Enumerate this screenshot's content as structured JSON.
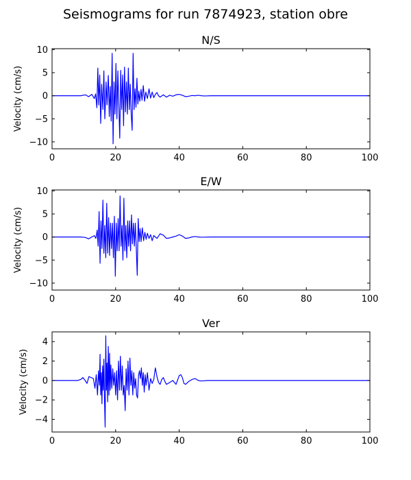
{
  "title": "Seismograms for run 7874923, station obre",
  "chart_data": [
    {
      "type": "line",
      "title": "N/S",
      "xlabel": "",
      "ylabel": "Velocity (cm/s)",
      "xlim": [
        0,
        100
      ],
      "ylim": [
        -11.5,
        10.2
      ],
      "xticks": [
        0,
        20,
        40,
        60,
        80,
        100
      ],
      "yticks": [
        10,
        5,
        0,
        -5,
        -10
      ],
      "color": "#0000ff",
      "points": [
        [
          0,
          0
        ],
        [
          9,
          0
        ],
        [
          10.5,
          0.2
        ],
        [
          11.5,
          -0.2
        ],
        [
          12.5,
          0.3
        ],
        [
          13.3,
          -0.6
        ],
        [
          13.7,
          0.4
        ],
        [
          14.1,
          -2.6
        ],
        [
          14.4,
          6.0
        ],
        [
          14.7,
          -2.0
        ],
        [
          15.0,
          4.5
        ],
        [
          15.3,
          -6.0
        ],
        [
          15.6,
          2.5
        ],
        [
          16.0,
          -3.0
        ],
        [
          16.3,
          5.4
        ],
        [
          16.6,
          -5.0
        ],
        [
          17.0,
          3.0
        ],
        [
          17.3,
          -2.0
        ],
        [
          17.7,
          4.4
        ],
        [
          18.0,
          -4.5
        ],
        [
          18.3,
          2.0
        ],
        [
          18.6,
          -5.5
        ],
        [
          18.9,
          9.2
        ],
        [
          19.2,
          -10.4
        ],
        [
          19.5,
          3.0
        ],
        [
          19.8,
          -4.0
        ],
        [
          20.1,
          7.0
        ],
        [
          20.4,
          -5.0
        ],
        [
          20.7,
          5.4
        ],
        [
          21.0,
          -2.0
        ],
        [
          21.3,
          -9.2
        ],
        [
          21.6,
          5.5
        ],
        [
          21.9,
          -3.0
        ],
        [
          22.2,
          4.5
        ],
        [
          22.5,
          -6.5
        ],
        [
          22.8,
          6.2
        ],
        [
          23.1,
          -3.5
        ],
        [
          23.4,
          3.0
        ],
        [
          23.7,
          -4.0
        ],
        [
          24.0,
          6.0
        ],
        [
          24.3,
          -3.0
        ],
        [
          24.6,
          2.5
        ],
        [
          24.9,
          -4.0
        ],
        [
          25.2,
          -7.5
        ],
        [
          25.5,
          9.2
        ],
        [
          25.8,
          -3.0
        ],
        [
          26.1,
          1.5
        ],
        [
          26.4,
          -2.5
        ],
        [
          26.7,
          3.8
        ],
        [
          27.0,
          -1.8
        ],
        [
          27.3,
          1.0
        ],
        [
          27.6,
          -1.2
        ],
        [
          28.0,
          1.4
        ],
        [
          28.3,
          -1.0
        ],
        [
          28.7,
          2.2
        ],
        [
          29.1,
          -1.2
        ],
        [
          29.5,
          0.8
        ],
        [
          30.0,
          -0.6
        ],
        [
          30.5,
          1.5
        ],
        [
          31.0,
          -0.5
        ],
        [
          31.5,
          0.8
        ],
        [
          32.0,
          -0.4
        ],
        [
          32.5,
          0.3
        ],
        [
          33.0,
          0.7
        ],
        [
          33.5,
          0.0
        ],
        [
          34.0,
          -0.3
        ],
        [
          35.0,
          0.2
        ],
        [
          36.0,
          -0.3
        ],
        [
          37.0,
          0.1
        ],
        [
          38.0,
          -0.1
        ],
        [
          39.0,
          0.2
        ],
        [
          40.0,
          0.3
        ],
        [
          41.0,
          0.1
        ],
        [
          42.0,
          -0.2
        ],
        [
          43.0,
          -0.1
        ],
        [
          44.0,
          0.05
        ],
        [
          45.0,
          0.0
        ],
        [
          46.0,
          0.1
        ],
        [
          47.0,
          0.0
        ],
        [
          48.0,
          -0.05
        ],
        [
          50.0,
          0
        ],
        [
          100,
          0
        ]
      ]
    },
    {
      "type": "line",
      "title": "E/W",
      "xlabel": "",
      "ylabel": "Velocity (cm/s)",
      "xlim": [
        0,
        100
      ],
      "ylim": [
        -11.5,
        10.2
      ],
      "xticks": [
        0,
        20,
        40,
        60,
        80,
        100
      ],
      "yticks": [
        10,
        5,
        0,
        -5,
        -10
      ],
      "color": "#0000ff",
      "points": [
        [
          0,
          0
        ],
        [
          9,
          0
        ],
        [
          10.5,
          -0.1
        ],
        [
          11.5,
          -0.4
        ],
        [
          12.5,
          0.0
        ],
        [
          13.3,
          0.3
        ],
        [
          13.8,
          -0.3
        ],
        [
          14.2,
          1.5
        ],
        [
          14.5,
          -2.0
        ],
        [
          14.8,
          5.5
        ],
        [
          15.1,
          -5.7
        ],
        [
          15.4,
          3.5
        ],
        [
          15.7,
          -2.5
        ],
        [
          16.0,
          8.0
        ],
        [
          16.3,
          -3.5
        ],
        [
          16.6,
          2.5
        ],
        [
          16.9,
          -4.5
        ],
        [
          17.2,
          7.3
        ],
        [
          17.5,
          -3.5
        ],
        [
          17.8,
          4.2
        ],
        [
          18.1,
          -4.0
        ],
        [
          18.4,
          3.0
        ],
        [
          18.7,
          -2.5
        ],
        [
          19.0,
          3.0
        ],
        [
          19.3,
          -4.5
        ],
        [
          19.6,
          4.5
        ],
        [
          19.9,
          -8.5
        ],
        [
          20.2,
          3.0
        ],
        [
          20.5,
          -3.0
        ],
        [
          20.8,
          4.0
        ],
        [
          21.1,
          -3.0
        ],
        [
          21.4,
          8.9
        ],
        [
          21.7,
          -2.0
        ],
        [
          22.0,
          2.5
        ],
        [
          22.3,
          -5.0
        ],
        [
          22.6,
          8.4
        ],
        [
          22.9,
          -3.0
        ],
        [
          23.2,
          2.5
        ],
        [
          23.5,
          -4.5
        ],
        [
          23.8,
          3.5
        ],
        [
          24.1,
          -2.0
        ],
        [
          24.4,
          3.5
        ],
        [
          24.7,
          -3.0
        ],
        [
          25.0,
          4.8
        ],
        [
          25.3,
          -1.5
        ],
        [
          25.6,
          3.0
        ],
        [
          25.9,
          -2.0
        ],
        [
          26.2,
          3.0
        ],
        [
          26.5,
          -2.5
        ],
        [
          26.8,
          -8.3
        ],
        [
          27.1,
          4.0
        ],
        [
          27.4,
          -1.0
        ],
        [
          27.7,
          1.8
        ],
        [
          28.0,
          -1.0
        ],
        [
          28.4,
          2.0
        ],
        [
          28.8,
          -0.8
        ],
        [
          29.2,
          1.0
        ],
        [
          29.6,
          -0.5
        ],
        [
          30.0,
          0.8
        ],
        [
          30.5,
          -0.3
        ],
        [
          31.0,
          0.5
        ],
        [
          31.5,
          -0.8
        ],
        [
          32.0,
          0.3
        ],
        [
          33.0,
          -0.3
        ],
        [
          34.0,
          0.7
        ],
        [
          35.0,
          0.4
        ],
        [
          36.0,
          -0.3
        ],
        [
          37.0,
          -0.2
        ],
        [
          38.0,
          0.0
        ],
        [
          39.0,
          0.2
        ],
        [
          40.0,
          0.5
        ],
        [
          41.0,
          0.2
        ],
        [
          42.0,
          -0.3
        ],
        [
          43.0,
          -0.2
        ],
        [
          44.0,
          0.0
        ],
        [
          45.0,
          0.1
        ],
        [
          46.0,
          0.0
        ],
        [
          47.0,
          -0.05
        ],
        [
          50.0,
          0
        ],
        [
          100,
          0
        ]
      ]
    },
    {
      "type": "line",
      "title": "Ver",
      "xlabel": "",
      "ylabel": "Velocity (cm/s)",
      "xlim": [
        0,
        100
      ],
      "ylim": [
        -5.3,
        5.0
      ],
      "xticks": [
        0,
        20,
        40,
        60,
        80,
        100
      ],
      "yticks": [
        4,
        2,
        0,
        -2,
        -4
      ],
      "color": "#0000ff",
      "points": [
        [
          0,
          0
        ],
        [
          8,
          0
        ],
        [
          9,
          0.1
        ],
        [
          9.7,
          0.3
        ],
        [
          10.4,
          0.0
        ],
        [
          11.0,
          -0.3
        ],
        [
          11.6,
          0.4
        ],
        [
          12.3,
          0.3
        ],
        [
          13.0,
          0.2
        ],
        [
          13.5,
          -0.8
        ],
        [
          13.9,
          0.6
        ],
        [
          14.3,
          -1.5
        ],
        [
          14.6,
          1.0
        ],
        [
          14.9,
          -0.5
        ],
        [
          15.1,
          2.7
        ],
        [
          15.3,
          -1.5
        ],
        [
          15.5,
          0.8
        ],
        [
          15.7,
          -2.4
        ],
        [
          15.9,
          1.5
        ],
        [
          16.1,
          -1.0
        ],
        [
          16.3,
          2.2
        ],
        [
          16.5,
          -2.0
        ],
        [
          16.7,
          -4.8
        ],
        [
          16.9,
          4.6
        ],
        [
          17.1,
          -1.0
        ],
        [
          17.3,
          1.8
        ],
        [
          17.5,
          -2.2
        ],
        [
          17.7,
          3.5
        ],
        [
          17.9,
          -1.5
        ],
        [
          18.1,
          2.8
        ],
        [
          18.3,
          -1.0
        ],
        [
          18.5,
          1.6
        ],
        [
          18.8,
          -0.8
        ],
        [
          19.1,
          1.2
        ],
        [
          19.4,
          -0.5
        ],
        [
          19.7,
          0.8
        ],
        [
          20.0,
          -1.5
        ],
        [
          20.3,
          1.0
        ],
        [
          20.6,
          -2.0
        ],
        [
          20.9,
          2.0
        ],
        [
          21.2,
          -1.0
        ],
        [
          21.5,
          2.5
        ],
        [
          21.8,
          -1.0
        ],
        [
          22.1,
          1.5
        ],
        [
          22.4,
          -1.5
        ],
        [
          22.7,
          -0.5
        ],
        [
          23.0,
          -3.1
        ],
        [
          23.3,
          1.2
        ],
        [
          23.6,
          -1.0
        ],
        [
          23.9,
          2.0
        ],
        [
          24.2,
          -1.5
        ],
        [
          24.5,
          2.3
        ],
        [
          24.8,
          -0.5
        ],
        [
          25.1,
          1.0
        ],
        [
          25.4,
          -1.5
        ],
        [
          25.7,
          0.8
        ],
        [
          26.0,
          -0.8
        ],
        [
          26.3,
          0.2
        ],
        [
          26.6,
          -1.5
        ],
        [
          26.9,
          -1.8
        ],
        [
          27.2,
          0.5
        ],
        [
          27.5,
          1.0
        ],
        [
          27.8,
          0.2
        ],
        [
          28.1,
          1.3
        ],
        [
          28.4,
          -0.5
        ],
        [
          28.7,
          0.8
        ],
        [
          29.0,
          -1.2
        ],
        [
          29.3,
          0.6
        ],
        [
          29.6,
          -0.5
        ],
        [
          30.0,
          0.8
        ],
        [
          30.5,
          -1.0
        ],
        [
          31.0,
          0.2
        ],
        [
          31.5,
          -0.3
        ],
        [
          32.0,
          0.1
        ],
        [
          32.5,
          1.3
        ],
        [
          33.0,
          0.4
        ],
        [
          33.5,
          -0.2
        ],
        [
          34.0,
          -0.4
        ],
        [
          34.5,
          0.1
        ],
        [
          35.0,
          0.3
        ],
        [
          35.5,
          -0.1
        ],
        [
          36.0,
          -0.4
        ],
        [
          37.0,
          -0.2
        ],
        [
          38.0,
          0.0
        ],
        [
          39.0,
          -0.4
        ],
        [
          40.0,
          0.5
        ],
        [
          40.5,
          0.6
        ],
        [
          41.0,
          0.3
        ],
        [
          41.5,
          -0.3
        ],
        [
          42.0,
          -0.4
        ],
        [
          43.0,
          -0.1
        ],
        [
          44.0,
          0.1
        ],
        [
          45.0,
          0.2
        ],
        [
          46.0,
          0.0
        ],
        [
          47.0,
          -0.05
        ],
        [
          49.0,
          0
        ],
        [
          100,
          0
        ]
      ]
    }
  ]
}
